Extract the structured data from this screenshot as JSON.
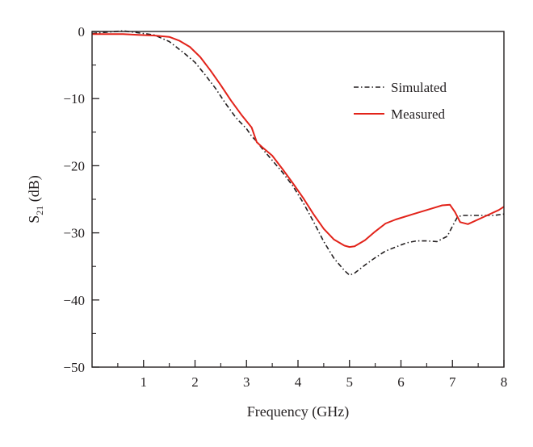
{
  "chart_data": {
    "type": "line",
    "xlabel": "Frequency (GHz)",
    "ylabel": {
      "base": "S",
      "subscript": "21",
      "unit": " (dB)"
    },
    "xlim": [
      0,
      8
    ],
    "ylim": [
      -50,
      0
    ],
    "xticks": [
      1,
      2,
      3,
      4,
      5,
      6,
      7,
      8
    ],
    "yticks": [
      0,
      -10,
      -20,
      -30,
      -40,
      -50
    ],
    "xtick_labels": [
      "1",
      "2",
      "3",
      "4",
      "5",
      "6",
      "7",
      "8"
    ],
    "ytick_labels": [
      "0",
      "−10",
      "−20",
      "−30",
      "−40",
      "−50"
    ],
    "grid": false,
    "legend": {
      "position": "top-right"
    },
    "series": [
      {
        "name": "Simulated",
        "color": "#231f20",
        "style": "dash-dot",
        "x": [
          0,
          0.3,
          0.6,
          0.9,
          1.2,
          1.5,
          1.8,
          2.0,
          2.2,
          2.4,
          2.6,
          2.8,
          3.0,
          3.1,
          3.2,
          3.3,
          3.5,
          3.7,
          3.9,
          4.1,
          4.3,
          4.5,
          4.7,
          4.9,
          5.0,
          5.1,
          5.3,
          5.5,
          5.7,
          5.9,
          6.1,
          6.3,
          6.5,
          6.7,
          6.9,
          7.0,
          7.1,
          7.2,
          7.4,
          7.6,
          7.8,
          8.0
        ],
        "y": [
          -0.3,
          -0.1,
          0.1,
          -0.2,
          -0.5,
          -1.5,
          -3.3,
          -4.6,
          -6.5,
          -8.5,
          -10.8,
          -12.9,
          -14.5,
          -15.6,
          -16.4,
          -17.4,
          -19.2,
          -21.0,
          -23.0,
          -25.5,
          -28.3,
          -31.3,
          -33.8,
          -35.6,
          -36.3,
          -36.0,
          -34.8,
          -33.7,
          -32.7,
          -32.1,
          -31.5,
          -31.2,
          -31.2,
          -31.3,
          -30.5,
          -29.0,
          -27.6,
          -27.4,
          -27.4,
          -27.4,
          -27.4,
          -27.2
        ]
      },
      {
        "name": "Measured",
        "color": "#e2231a",
        "style": "solid",
        "x": [
          0,
          0.3,
          0.6,
          0.9,
          1.2,
          1.5,
          1.7,
          1.9,
          2.1,
          2.3,
          2.5,
          2.7,
          2.9,
          3.1,
          3.2,
          3.3,
          3.5,
          3.7,
          3.9,
          4.1,
          4.3,
          4.5,
          4.7,
          4.9,
          5.0,
          5.1,
          5.3,
          5.5,
          5.7,
          5.9,
          6.2,
          6.5,
          6.8,
          6.95,
          7.05,
          7.15,
          7.3,
          7.5,
          7.7,
          7.9,
          8.0
        ],
        "y": [
          -0.4,
          -0.4,
          -0.4,
          -0.5,
          -0.6,
          -0.8,
          -1.4,
          -2.3,
          -3.8,
          -5.8,
          -8.0,
          -10.3,
          -12.4,
          -14.3,
          -16.5,
          -17.2,
          -18.5,
          -20.5,
          -22.6,
          -24.8,
          -27.2,
          -29.4,
          -31.0,
          -31.9,
          -32.1,
          -32.0,
          -31.1,
          -29.8,
          -28.6,
          -28.0,
          -27.3,
          -26.6,
          -25.9,
          -25.8,
          -26.9,
          -28.4,
          -28.7,
          -28.0,
          -27.3,
          -26.6,
          -26.1
        ]
      }
    ]
  }
}
